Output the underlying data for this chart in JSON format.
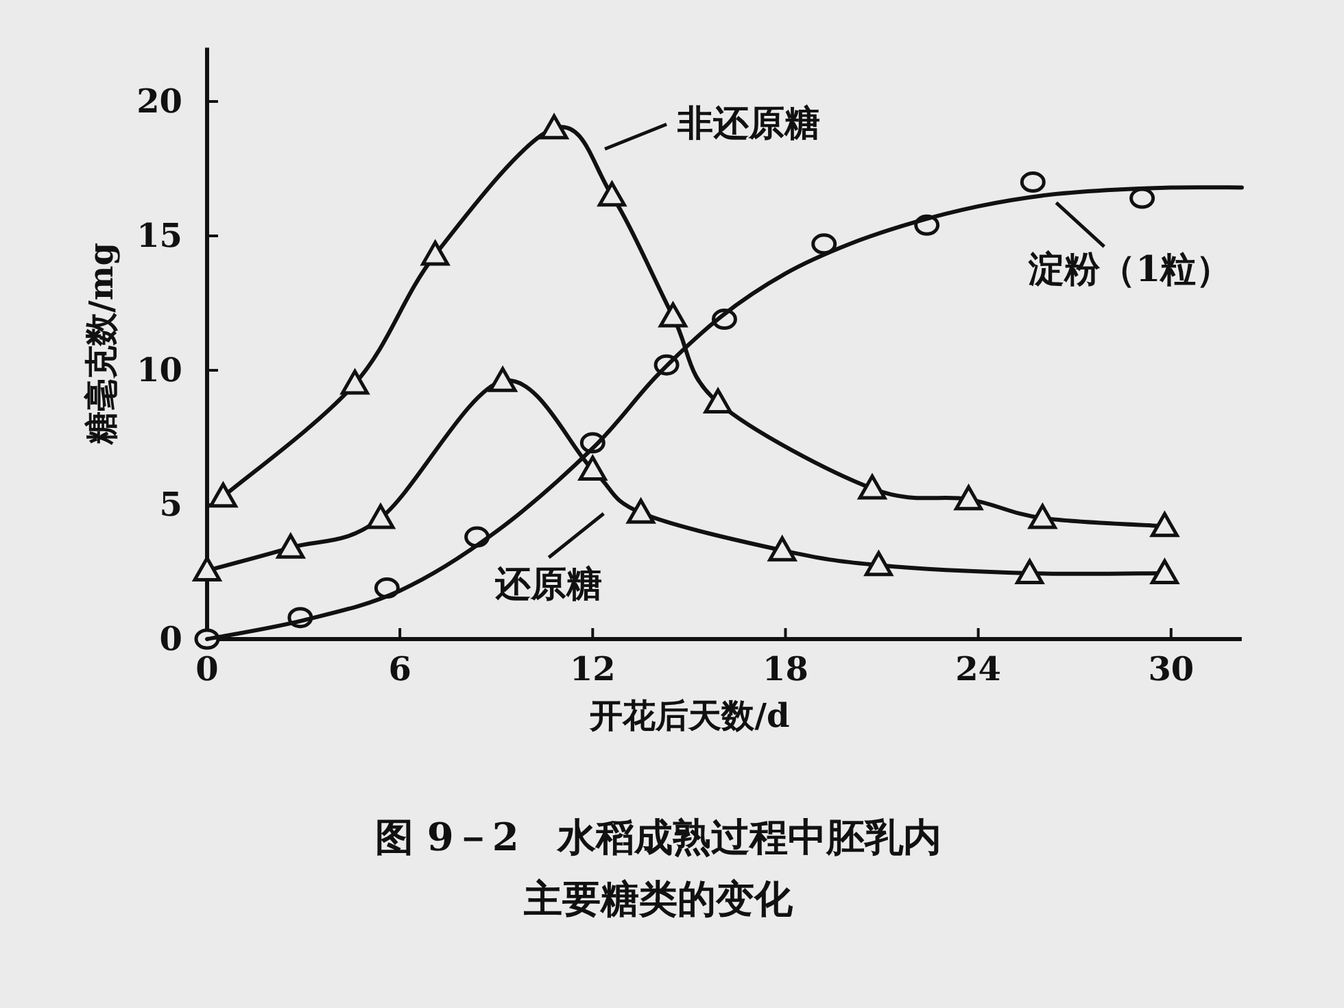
{
  "chart_data": {
    "type": "line",
    "xlabel": "开花后天数/d",
    "ylabel": "糖毫克数/mg",
    "xlim": [
      0,
      32.2
    ],
    "ylim": [
      0,
      22
    ],
    "xticks": [
      0,
      6,
      12,
      18,
      24,
      30
    ],
    "legend": "right",
    "yticks": [
      0,
      5,
      10,
      15,
      20
    ],
    "series": [
      {
        "name": "非还原糖",
        "type": "line",
        "marker": "triangle",
        "color": "#111111",
        "x": [
          0.5,
          4.6,
          7.1,
          10.8,
          12.6,
          14.5,
          15.9,
          20.7,
          23.7,
          26.0,
          29.8
        ],
        "values": [
          5.3,
          9.5,
          14.3,
          19.0,
          16.5,
          12.0,
          8.8,
          5.6,
          5.2,
          4.5,
          4.2
        ]
      },
      {
        "name": "还原糖",
        "type": "line",
        "marker": "triangle",
        "color": "#111111",
        "x": [
          0,
          2.6,
          5.4,
          9.2,
          12.0,
          13.5,
          17.9,
          20.9,
          25.6,
          29.8
        ],
        "values": [
          2.55,
          3.4,
          4.5,
          9.6,
          6.3,
          4.7,
          3.3,
          2.75,
          2.45,
          2.45
        ]
      },
      {
        "name": "淀粉（1粒）",
        "type": "scatter",
        "marker": "circle",
        "color": "#111111",
        "x": [
          0,
          2.9,
          5.6,
          8.4,
          12.0,
          14.3,
          16.1,
          19.2,
          22.4,
          25.7,
          29.1
        ],
        "values": [
          0,
          0.8,
          1.9,
          3.8,
          7.3,
          10.2,
          11.9,
          14.7,
          15.4,
          17.0,
          16.4
        ]
      },
      {
        "type": "line",
        "marker": "none",
        "color": "#111111",
        "x": [
          0,
          3,
          6,
          9,
          12,
          14,
          16,
          18,
          20,
          22,
          24,
          26,
          28,
          30,
          32.2
        ],
        "values": [
          0,
          0.7,
          1.8,
          4.0,
          7.1,
          9.8,
          12.0,
          13.6,
          14.7,
          15.5,
          16.1,
          16.5,
          16.7,
          16.8,
          16.8
        ]
      }
    ],
    "annotations": [
      "图 9－2　水稻成熟过程中胚乳内",
      "主要糖类的变化"
    ]
  }
}
